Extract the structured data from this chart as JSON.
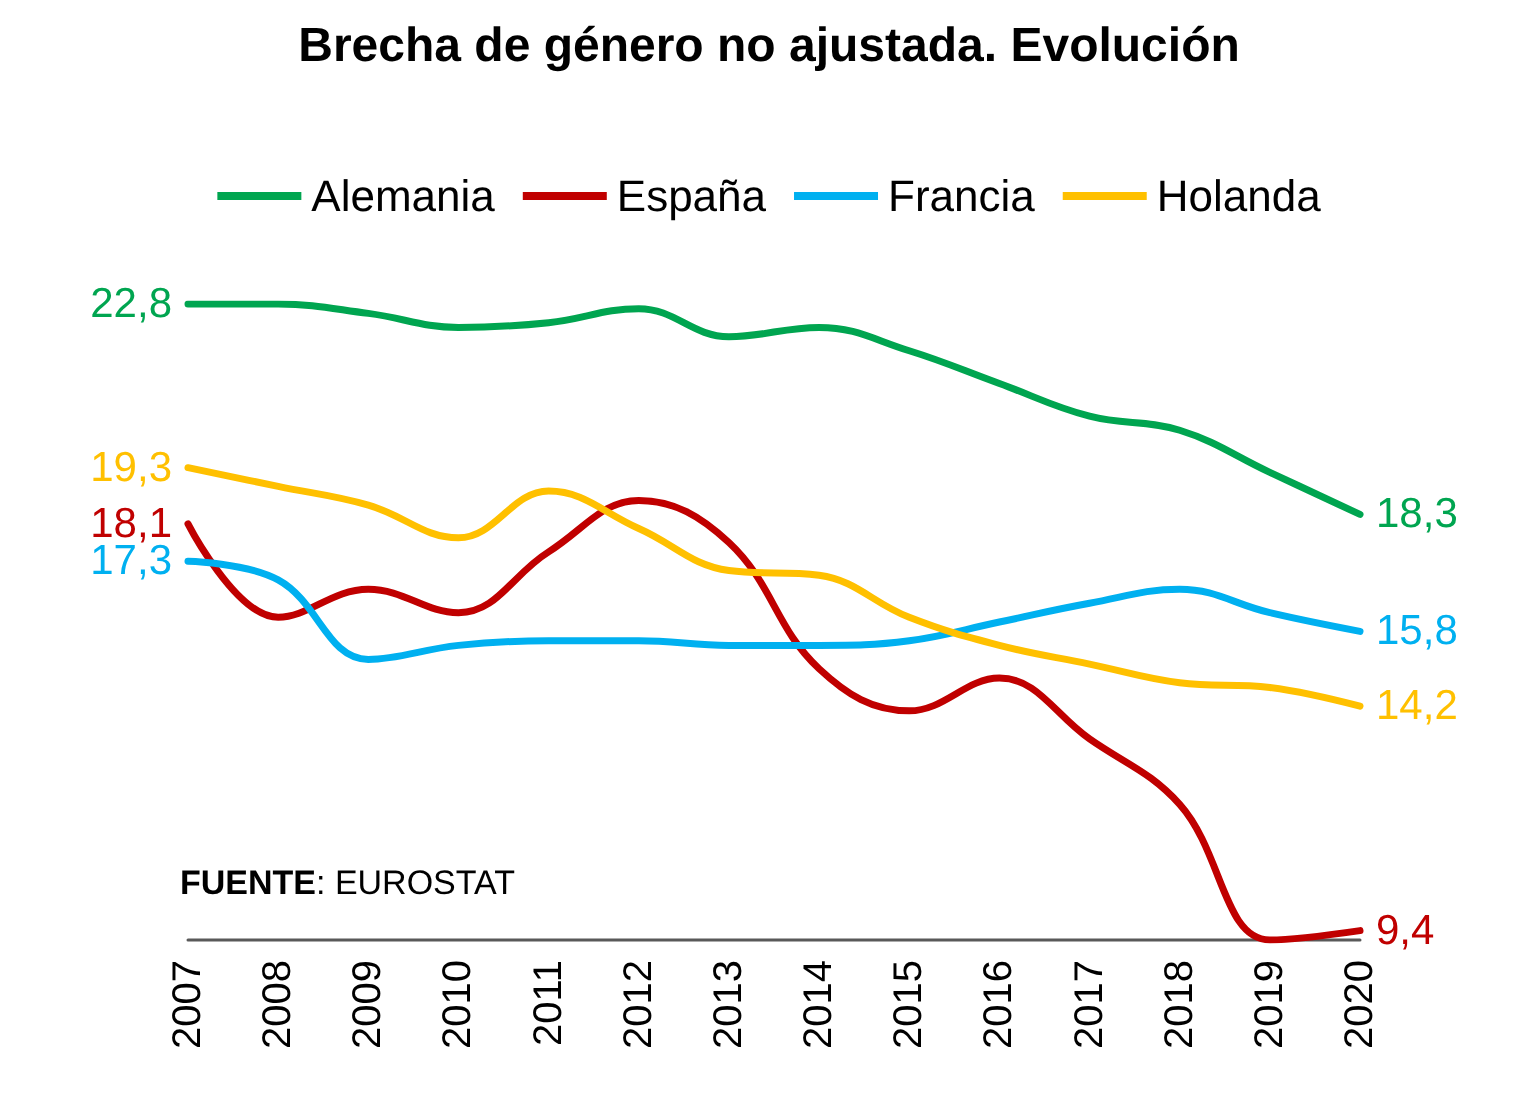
{
  "chart_data": {
    "type": "line",
    "title": "Brecha de género no ajustada. Evolución",
    "categories": [
      "2007",
      "2008",
      "2009",
      "2010",
      "2011",
      "2012",
      "2013",
      "2014",
      "2015",
      "2016",
      "2017",
      "2018",
      "2019",
      "2020"
    ],
    "series": [
      {
        "name": "Alemania",
        "color": "#00a550",
        "values": [
          22.8,
          22.8,
          22.6,
          22.3,
          22.4,
          22.7,
          22.1,
          22.3,
          21.8,
          21.1,
          20.4,
          20.1,
          19.2,
          18.3
        ],
        "value_labels": [
          "22,8",
          null,
          null,
          null,
          null,
          null,
          null,
          null,
          null,
          null,
          null,
          null,
          null,
          "18,3"
        ]
      },
      {
        "name": "España",
        "color": "#c00000",
        "values": [
          18.1,
          16.1,
          16.7,
          16.2,
          17.5,
          18.6,
          17.7,
          15.0,
          14.1,
          14.8,
          13.5,
          12.1,
          9.2,
          9.4
        ],
        "value_labels": [
          "18,1",
          null,
          null,
          null,
          null,
          null,
          null,
          null,
          null,
          null,
          null,
          null,
          null,
          "9,4"
        ]
      },
      {
        "name": "Francia",
        "color": "#00b0f0",
        "values": [
          17.3,
          16.9,
          15.2,
          15.5,
          15.6,
          15.6,
          15.5,
          15.5,
          15.6,
          16.0,
          16.4,
          16.7,
          16.2,
          15.8
        ],
        "value_labels": [
          "17,3",
          null,
          null,
          null,
          null,
          null,
          null,
          null,
          null,
          null,
          null,
          null,
          null,
          "15,8"
        ]
      },
      {
        "name": "Holanda",
        "color": "#ffc000",
        "values": [
          19.3,
          18.9,
          18.5,
          17.8,
          18.8,
          18.0,
          17.1,
          17.0,
          16.1,
          15.5,
          15.1,
          14.7,
          14.6,
          14.2
        ],
        "value_labels": [
          "19,3",
          null,
          null,
          null,
          null,
          null,
          null,
          null,
          null,
          null,
          null,
          null,
          null,
          "14,2"
        ]
      }
    ],
    "grid": false,
    "legend": "top",
    "marker": "none",
    "line_style": "solid",
    "annotations": [
      "FUENTE: EUROSTAT"
    ]
  }
}
